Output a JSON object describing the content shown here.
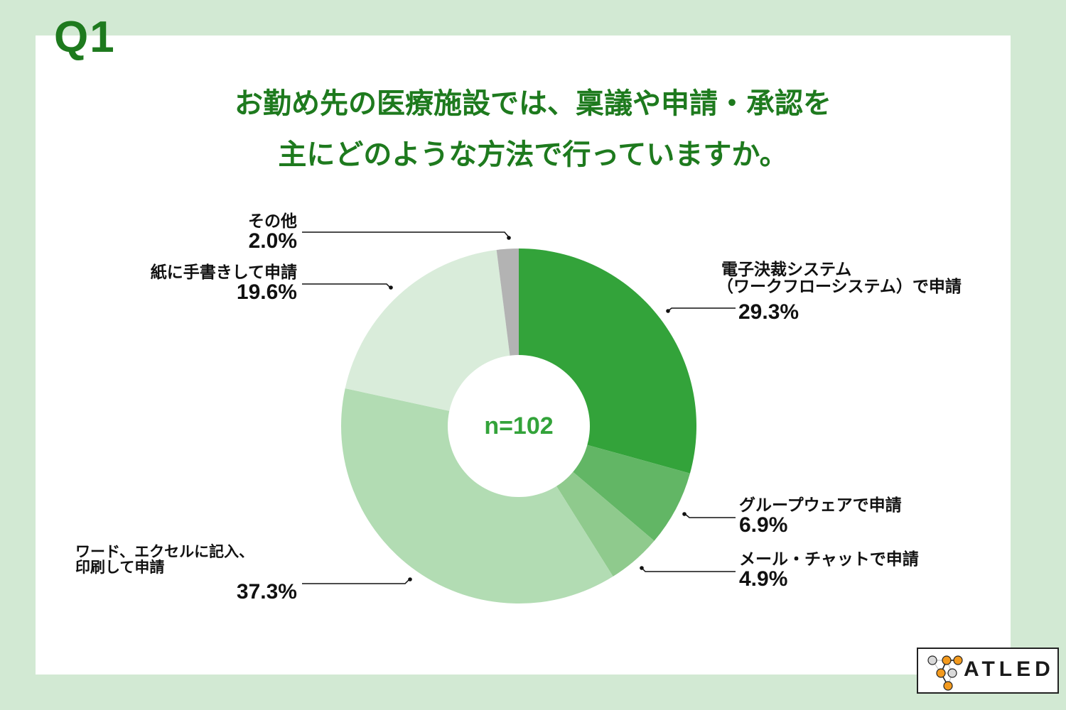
{
  "question_number": "Q1",
  "title": {
    "line1": "お勤め先の医療施設では、稟議や申請・承認を",
    "line2": "主にどのような方法で行っていますか。"
  },
  "center_label": "n=102",
  "colors": {
    "background": "#d2e9d3",
    "panel": "#ffffff",
    "title": "#1e7a1e",
    "center_text": "#33a33a",
    "logo_orange": "#f39a1e",
    "logo_gray": "#d9d9d9"
  },
  "labels": {
    "electronic": {
      "line1": "電子決裁システム",
      "line2": "（ワークフローシステム）で申請",
      "pct": "29.3%"
    },
    "groupware": {
      "name": "グループウェアで申請",
      "pct": "6.9%"
    },
    "mail": {
      "name": "メール・チャットで申請",
      "pct": "4.9%"
    },
    "word_excel": {
      "line1": "ワード、エクセルに記入、",
      "line2": "印刷して申請",
      "pct": "37.3%"
    },
    "paper": {
      "name": "紙に手書きして申請",
      "pct": "19.6%"
    },
    "other": {
      "name": "その他",
      "pct": "2.0%"
    }
  },
  "logo": {
    "text": "ATLED"
  },
  "chart_data": {
    "type": "pie",
    "subtype": "donut",
    "title": "お勤め先の医療施設では、稟議や申請・承認を主にどのような方法で行っていますか。",
    "center_text": "n=102",
    "sample_size": 102,
    "start_angle": "12 o'clock, clockwise",
    "categories": [
      "電子決裁システム（ワークフローシステム）で申請",
      "グループウェアで申請",
      "メール・チャットで申請",
      "ワード、エクセルに記入、印刷して申請",
      "紙に手書きして申請",
      "その他"
    ],
    "values": [
      29.3,
      6.9,
      4.9,
      37.3,
      19.6,
      2.0
    ],
    "unit": "%",
    "colors": [
      "#33a33a",
      "#62b665",
      "#8fca8d",
      "#b2dcb3",
      "#d9ecda",
      "#b3b3b3"
    ],
    "legend": "none (callout labels)"
  }
}
